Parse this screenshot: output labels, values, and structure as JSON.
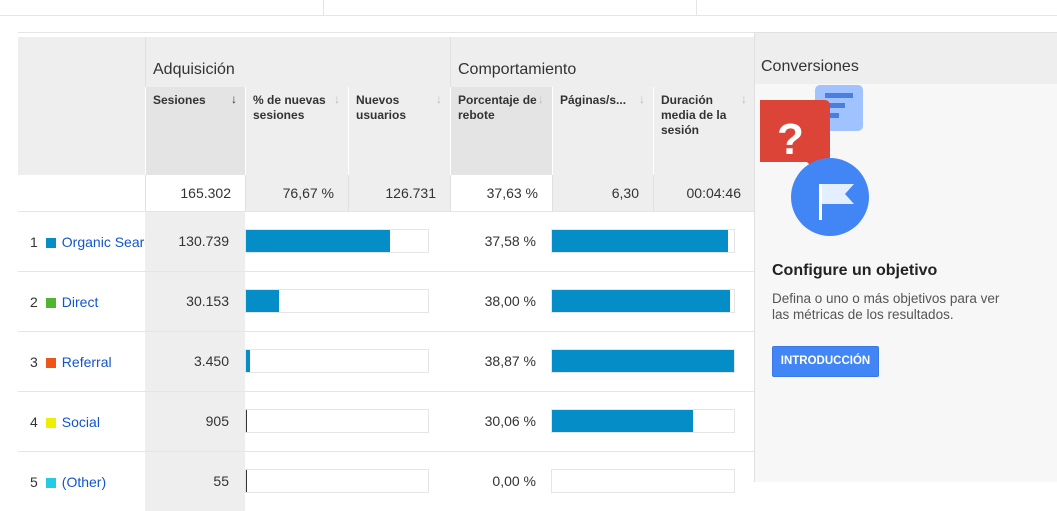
{
  "groups": {
    "acquisition": "Adquisición",
    "behavior": "Comportamiento",
    "conversions": "Conversiones"
  },
  "columns": [
    "Sesiones",
    "% de nuevas sesiones",
    "Nuevos usuarios",
    "Porcentaje de rebote",
    "Páginas/s...",
    "Duración media de la sesión"
  ],
  "sort_icon": "arrow-down-icon",
  "totals": [
    "165.302",
    "76,67 %",
    "126.731",
    "37,63 %",
    "6,30",
    "00:04:46"
  ],
  "rows": [
    {
      "rank": "1",
      "label": "Organic Search",
      "color": "#058dc7",
      "sessions": "130.739",
      "sessions_share": 0.791,
      "bounce": "37,58 %",
      "bounce_bar": 0.967
    },
    {
      "rank": "2",
      "label": "Direct",
      "color": "#50b432",
      "sessions": "30.153",
      "sessions_share": 0.182,
      "bounce": "38,00 %",
      "bounce_bar": 0.978
    },
    {
      "rank": "3",
      "label": "Referral",
      "color": "#ed561b",
      "sessions": "3.450",
      "sessions_share": 0.021,
      "bounce": "38,87 %",
      "bounce_bar": 1.0
    },
    {
      "rank": "4",
      "label": "Social",
      "color": "#edef00",
      "sessions": "905",
      "sessions_share": 0.005,
      "bounce": "30,06 %",
      "bounce_bar": 0.773
    },
    {
      "rank": "5",
      "label": "(Other)",
      "color": "#24cbe5",
      "sessions": "55",
      "sessions_share": 0.0003,
      "bounce": "0,00 %",
      "bounce_bar": 0
    }
  ],
  "conversions": {
    "title": "Configure un objetivo",
    "text": "Defina o uno o más objetivos para ver las métricas de los resultados.",
    "button": "INTRODUCCIÓN"
  }
}
